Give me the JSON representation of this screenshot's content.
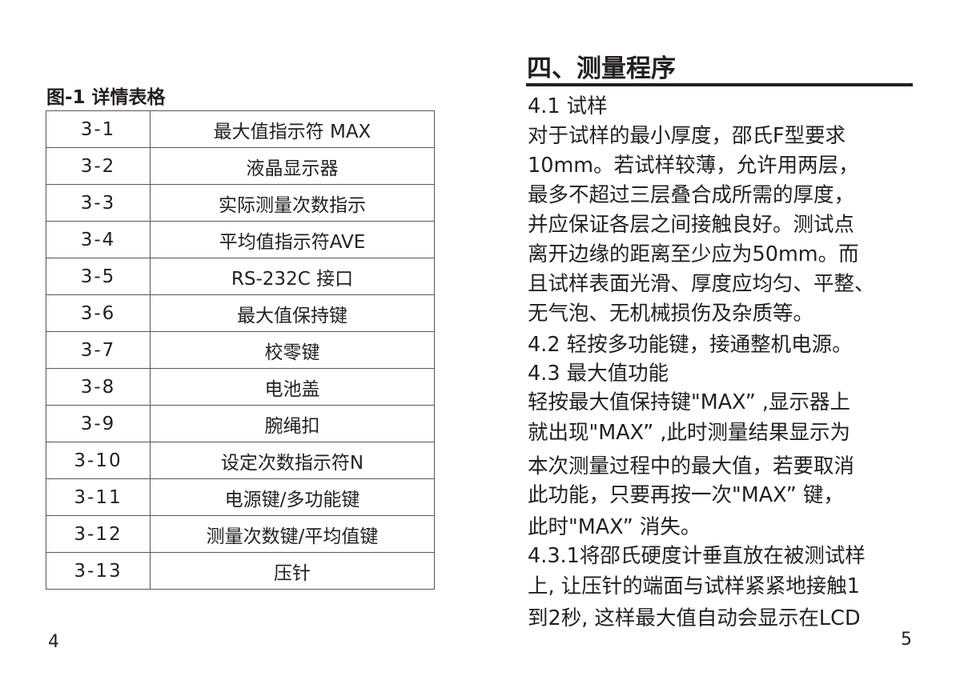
{
  "left_page": {
    "figure_title": "图-1 详情表格",
    "table_rows": [
      [
        "3-1",
        "最大值指示符 MAX"
      ],
      [
        "3-2",
        "液晶显示器"
      ],
      [
        "3-3",
        "实际测量次数指示"
      ],
      [
        "3-4",
        "平均值指示符AVE"
      ],
      [
        "3-5",
        "RS-232C 接口"
      ],
      [
        "3-6",
        "最大值保持键"
      ],
      [
        "3-7",
        "校零键"
      ],
      [
        "3-8",
        "电池盖"
      ],
      [
        "3-9",
        "腕绳扣"
      ],
      [
        "3-10",
        "设定次数指示符N"
      ],
      [
        "3-11",
        "电源键/多功能键"
      ],
      [
        "3-12",
        "测量次数键/平均值键"
      ],
      [
        "3-13",
        "压针"
      ]
    ],
    "page_number": "4"
  },
  "right_page": {
    "section_title": "四、测量程序",
    "lines": [
      "4.1 试样",
      "对于试样的最小厚度，邵氏F型要求",
      "10mm。若试样较薄，允许用两层，",
      "最多不超过三层叠合成所需的厚度，",
      "并应保证各层之间接触良好。测试点",
      "离开边缘的距离至少应为50mm。而",
      "且试样表面光滑、厚度应均匀、平整、",
      "无气泡、无机械损伤及杂质等。",
      "4.2 轻按多功能键，接通整机电源。",
      "4.3 最大值功能",
      "轻按最大值保持键\"MAX” ,显示器上",
      "就出现\"MAX” ,此时测量结果显示为",
      "本次测量过程中的最大值，若要取消",
      "此功能，只要再按一次\"MAX” 键，",
      "此时\"MAX” 消失。",
      "4.3.1将邵氏硬度计垂直放在被测试样",
      "上, 让压针的端面与试样紧紧地接触1",
      "到2秒, 这样最大值自动会显示在LCD"
    ],
    "page_number": "5"
  }
}
